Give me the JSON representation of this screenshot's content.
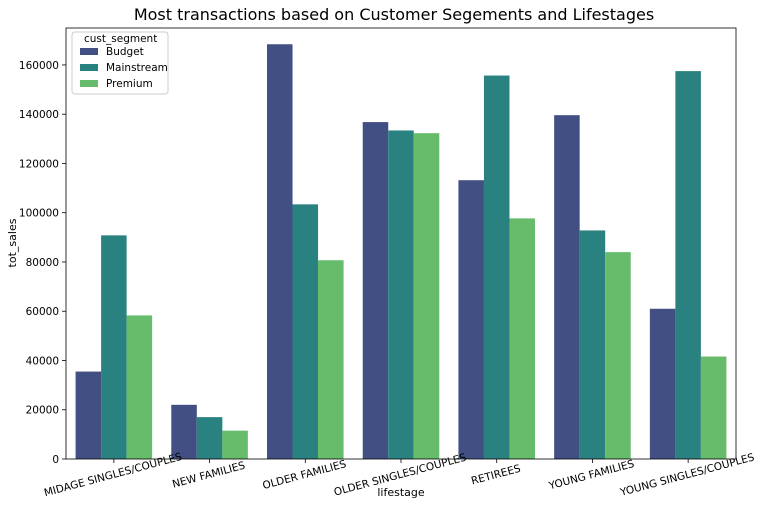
{
  "chart_data": {
    "type": "bar",
    "title": "Most transactions based on Customer Segements and Lifestages",
    "xlabel": "lifestage",
    "ylabel": "tot_sales",
    "categories": [
      "MIDAGE SINGLES/COUPLES",
      "NEW FAMILIES",
      "OLDER FAMILIES",
      "OLDER SINGLES/COUPLES",
      "RETIREES",
      "YOUNG FAMILIES",
      "YOUNG SINGLES/COUPLES"
    ],
    "series": [
      {
        "name": "Budget",
        "color": "#414f82",
        "values": [
          35500,
          22000,
          168400,
          136800,
          113200,
          139600,
          61000
        ]
      },
      {
        "name": "Mainstream",
        "color": "#2a8280",
        "values": [
          90800,
          17000,
          103400,
          133400,
          155700,
          92800,
          157500
        ]
      },
      {
        "name": "Premium",
        "color": "#67bc6b",
        "values": [
          58300,
          11500,
          80700,
          132300,
          97700,
          84000,
          41600
        ]
      }
    ],
    "ylim": [
      0,
      175000
    ],
    "yticks": [
      0,
      20000,
      40000,
      60000,
      80000,
      100000,
      120000,
      140000,
      160000
    ],
    "ytick_labels": [
      "0",
      "20000",
      "40000",
      "60000",
      "80000",
      "100000",
      "120000",
      "140000",
      "160000"
    ],
    "legend": {
      "title": "cust_segment",
      "position": "top-left"
    },
    "grid": false
  }
}
